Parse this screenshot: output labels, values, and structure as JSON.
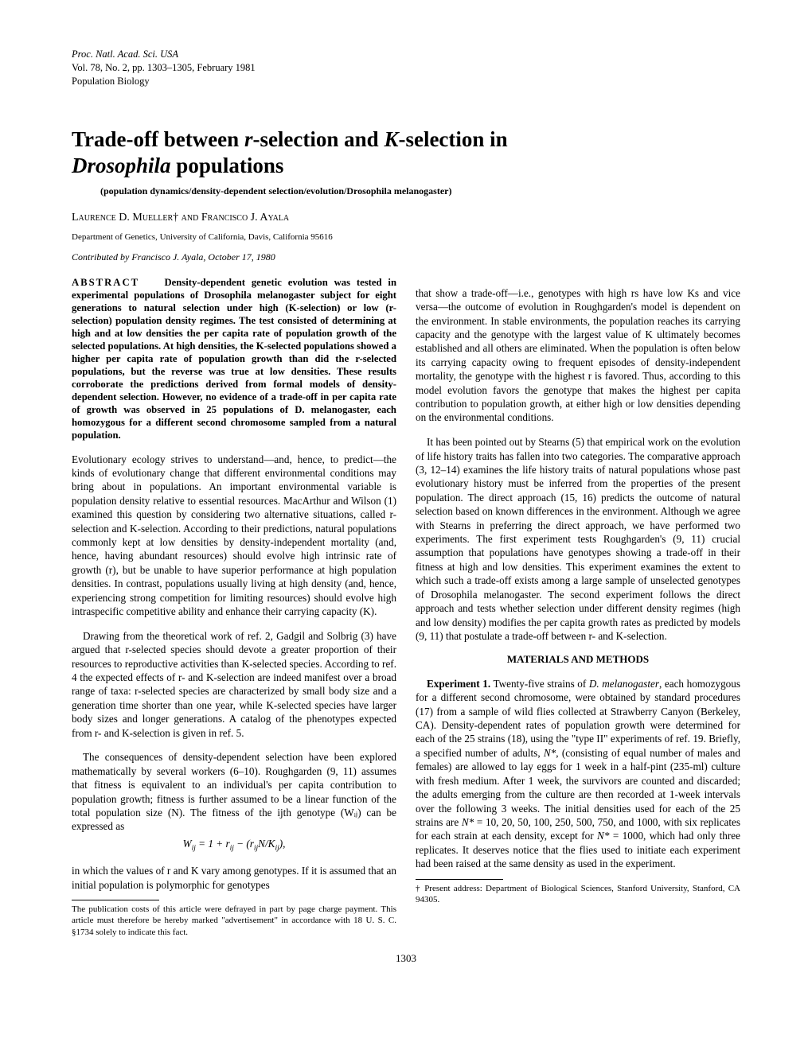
{
  "journal": {
    "line1": "Proc. Natl. Acad. Sci. USA",
    "line2": "Vol. 78, No. 2, pp. 1303–1305, February 1981",
    "line3": "Population Biology"
  },
  "title_part1": "Trade-off between ",
  "title_r": "r",
  "title_part2": "-selection and ",
  "title_k": "K",
  "title_part3": "-selection in ",
  "title_genus": "Drosophila",
  "title_part4": " populations",
  "keywords": "(population dynamics/density-dependent selection/evolution/Drosophila melanogaster)",
  "authors": "Laurence D. Mueller† and Francisco J. Ayala",
  "affiliation": "Department of Genetics, University of California, Davis, California 95616",
  "contributed": "Contributed by Francisco J. Ayala, October 17, 1980",
  "abstract_label": "ABSTRACT",
  "abstract_body": "Density-dependent genetic evolution was tested in experimental populations of Drosophila melanogaster subject for eight generations to natural selection under high (K-selection) or low (r-selection) population density regimes. The test consisted of determining at high and at low densities the per capita rate of population growth of the selected populations. At high densities, the K-selected populations showed a higher per capita rate of population growth than did the r-selected populations, but the reverse was true at low densities. These results corroborate the predictions derived from formal models of density-dependent selection. However, no evidence of a trade-off in per capita rate of growth was observed in 25 populations of D. melanogaster, each homozygous for a different second chromosome sampled from a natural population.",
  "col1_p1": "Evolutionary ecology strives to understand—and, hence, to predict—the kinds of evolutionary change that different environmental conditions may bring about in populations. An important environmental variable is population density relative to essential resources. MacArthur and Wilson (1) examined this question by considering two alternative situations, called r-selection and K-selection. According to their predictions, natural populations commonly kept at low densities by density-independent mortality (and, hence, having abundant resources) should evolve high intrinsic rate of growth (r), but be unable to have superior performance at high population densities. In contrast, populations usually living at high density (and, hence, experiencing strong competition for limiting resources) should evolve high intraspecific competitive ability and enhance their carrying capacity (K).",
  "col1_p2": "Drawing from the theoretical work of ref. 2, Gadgil and Solbrig (3) have argued that r-selected species should devote a greater proportion of their resources to reproductive activities than K-selected species. According to ref. 4 the expected effects of r- and K-selection are indeed manifest over a broad range of taxa: r-selected species are characterized by small body size and a generation time shorter than one year, while K-selected species have larger body sizes and longer generations. A catalog of the phenotypes expected from r- and K-selection is given in ref. 5.",
  "col1_p3": "The consequences of density-dependent selection have been explored mathematically by several workers (6–10). Roughgarden (9, 11) assumes that fitness is equivalent to an individual's per capita contribution to population growth; fitness is further assumed to be a linear function of the total population size (N). The fitness of the ijth genotype (Wᵢⱼ) can be expressed as",
  "equation": "Wᵢⱼ = 1 + rᵢⱼ − (rᵢⱼN/Kᵢⱼ),",
  "col1_p4": "in which the values of r and K vary among genotypes. If it is assumed that an initial population is polymorphic for genotypes",
  "col2_p1": "that show a trade-off—i.e., genotypes with high rs have low Ks and vice versa—the outcome of evolution in Roughgarden's model is dependent on the environment. In stable environments, the population reaches its carrying capacity and the genotype with the largest value of K ultimately becomes established and all others are eliminated. When the population is often below its carrying capacity owing to frequent episodes of density-independent mortality, the genotype with the highest r is favored. Thus, according to this model evolution favors the genotype that makes the highest per capita contribution to population growth, at either high or low densities depending on the environmental conditions.",
  "col2_p2": "It has been pointed out by Stearns (5) that empirical work on the evolution of life history traits has fallen into two categories. The comparative approach (3, 12–14) examines the life history traits of natural populations whose past evolutionary history must be inferred from the properties of the present population. The direct approach (15, 16) predicts the outcome of natural selection based on known differences in the environment. Although we agree with Stearns in preferring the direct approach, we have performed two experiments. The first experiment tests Roughgarden's (9, 11) crucial assumption that populations have genotypes showing a trade-off in their fitness at high and low densities. This experiment examines the extent to which such a trade-off exists among a large sample of unselected genotypes of Drosophila melanogaster. The second experiment follows the direct approach and tests whether selection under different density regimes (high and low density) modifies the per capita growth rates as predicted by models (9, 11) that postulate a trade-off between r- and K-selection.",
  "section_heading": "MATERIALS AND METHODS",
  "col2_p3": "Experiment 1. Twenty-five strains of D. melanogaster, each homozygous for a different second chromosome, were obtained by standard procedures (17) from a sample of wild flies collected at Strawberry Canyon (Berkeley, CA). Density-dependent rates of population growth were determined for each of the 25 strains (18), using the \"type II\" experiments of ref. 19. Briefly, a specified number of adults, N*, (consisting of equal number of males and females) are allowed to lay eggs for 1 week in a half-pint (235-ml) culture with fresh medium. After 1 week, the survivors are counted and discarded; the adults emerging from the culture are then recorded at 1-week intervals over the following 3 weeks. The initial densities used for each of the 25 strains are N* = 10, 20, 50, 100, 250, 500, 750, and 1000, with six replicates for each strain at each density, except for N* = 1000, which had only three replicates. It deserves notice that the flies used to initiate each experiment had been raised at the same density as used in the experiment.",
  "footnote_left": "The publication costs of this article were defrayed in part by page charge payment. This article must therefore be hereby marked \"advertisement\" in accordance with 18 U. S. C. §1734 solely to indicate this fact.",
  "footnote_right": "† Present address: Department of Biological Sciences, Stanford University, Stanford, CA 94305.",
  "page_number": "1303"
}
